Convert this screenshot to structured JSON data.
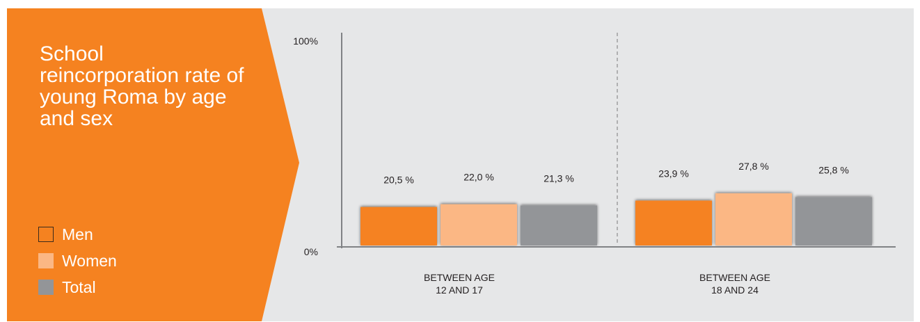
{
  "title": "School reincorporation rate of young Roma by age and sex",
  "legend": [
    {
      "label": "Men",
      "color": "#f58220"
    },
    {
      "label": "Women",
      "color": "#fbb784"
    },
    {
      "label": "Total",
      "color": "#939598"
    }
  ],
  "colors": {
    "panel_background": "#e6e7e8",
    "accent_orange": "#f58220",
    "axis": "#808285"
  },
  "chart_data": {
    "type": "bar",
    "title": "School reincorporation rate of young Roma by age and sex",
    "categories": [
      "BETWEEN AGE 12 AND 17",
      "BETWEEN AGE 18 AND 24"
    ],
    "category_label_lines": [
      [
        "BETWEEN AGE",
        "12 AND 17"
      ],
      [
        "BETWEEN AGE",
        "18 AND 24"
      ]
    ],
    "series": [
      {
        "name": "Men",
        "values": [
          20.5,
          23.9
        ],
        "labels": [
          "20,5 %",
          "23,9 %"
        ],
        "color": "#f58220"
      },
      {
        "name": "Women",
        "values": [
          22.0,
          27.8
        ],
        "labels": [
          "22,0 %",
          "27,8 %"
        ],
        "color": "#fbb784"
      },
      {
        "name": "Total",
        "values": [
          21.3,
          25.8
        ],
        "labels": [
          "21,3 %",
          "25,8 %"
        ],
        "color": "#939598"
      }
    ],
    "y_tick_labels": [
      "0%",
      "100%"
    ],
    "xlabel": "",
    "ylabel": "",
    "ylim": [
      0,
      100
    ],
    "grid": false,
    "category_separator": "dashed",
    "legend_position": "left"
  }
}
